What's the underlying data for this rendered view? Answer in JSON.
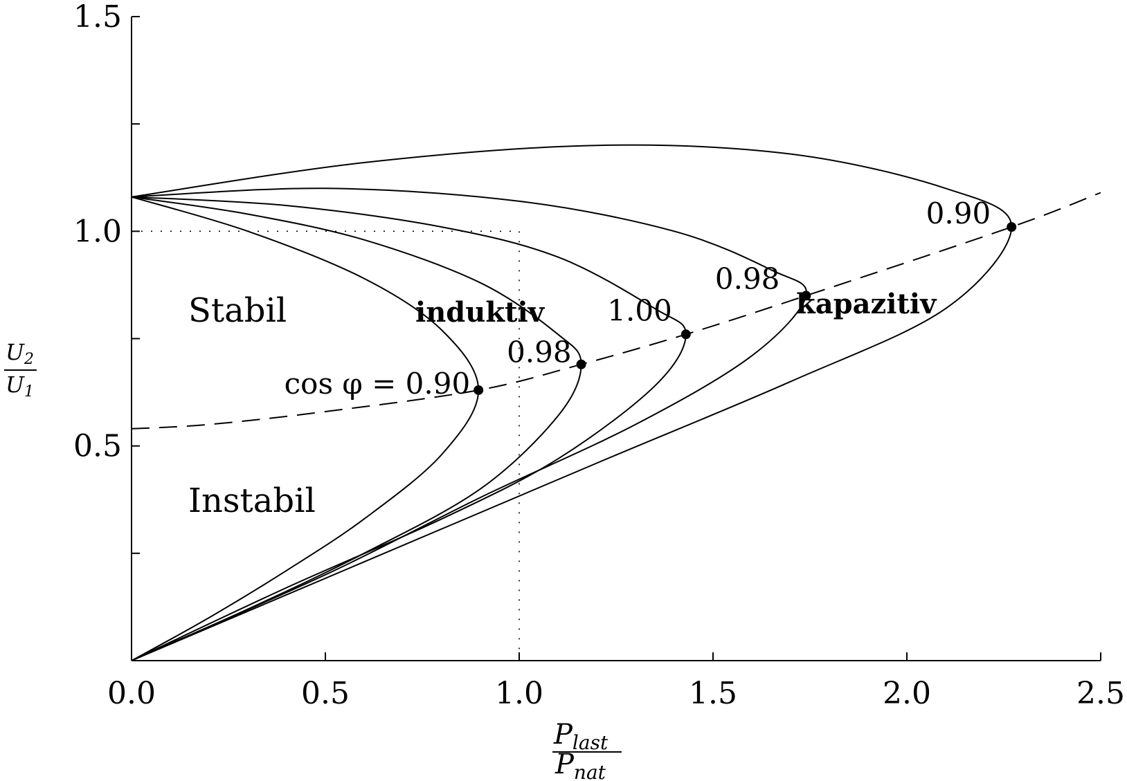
{
  "chart_data": {
    "type": "line",
    "title": "",
    "xlabel": {
      "numerator": "P",
      "numerator_sub": "last",
      "denominator": "P",
      "denominator_sub": "nat"
    },
    "ylabel": {
      "numerator": "U",
      "numerator_sub": "2",
      "denominator": "U",
      "denominator_sub": "1"
    },
    "xlim": [
      0,
      2.5
    ],
    "ylim": [
      0,
      1.5
    ],
    "x_ticks": [
      "0.0",
      "0.5",
      "1.0",
      "1.5",
      "2.0",
      "2.5"
    ],
    "x_tick_values": [
      0,
      0.5,
      1.0,
      1.5,
      2.0,
      2.5
    ],
    "y_ticks": [
      "0.5",
      "1.0",
      "1.5"
    ],
    "y_tick_values": [
      0.5,
      1.0,
      1.5
    ],
    "y_minor_tick_values": [
      0.25,
      0.75,
      1.25
    ],
    "grid": false,
    "series": [
      {
        "cos_phi": "0.90 induktiv",
        "x": [
          0,
          0.3,
          0.6,
          0.8,
          0.895,
          0.8,
          0.6,
          0.4,
          0.2,
          0
        ],
        "y": [
          1.08,
          1.0,
          0.89,
          0.77,
          0.63,
          0.48,
          0.33,
          0.21,
          0.1,
          0
        ]
      },
      {
        "cos_phi": "0.98 induktiv",
        "x": [
          0,
          0.3,
          0.6,
          0.9,
          1.1,
          1.16,
          1.1,
          0.9,
          0.6,
          0.3,
          0
        ],
        "y": [
          1.08,
          1.04,
          0.98,
          0.88,
          0.76,
          0.69,
          0.57,
          0.4,
          0.25,
          0.12,
          0
        ]
      },
      {
        "cos_phi": "1.00",
        "x": [
          0,
          0.4,
          0.8,
          1.1,
          1.35,
          1.43,
          1.35,
          1.1,
          0.8,
          0.4,
          0
        ],
        "y": [
          1.08,
          1.06,
          1.01,
          0.94,
          0.82,
          0.76,
          0.64,
          0.47,
          0.33,
          0.17,
          0
        ]
      },
      {
        "cos_phi": "0.98 kapazitiv",
        "x": [
          0,
          0.5,
          1.0,
          1.4,
          1.65,
          1.74,
          1.6,
          1.3,
          0.9,
          0.5,
          0
        ],
        "y": [
          1.08,
          1.1,
          1.07,
          1.0,
          0.91,
          0.85,
          0.71,
          0.55,
          0.38,
          0.2,
          0
        ]
      },
      {
        "cos_phi": "0.90 kapazitiv",
        "x": [
          0,
          0.6,
          1.2,
          1.7,
          2.1,
          2.27,
          2.1,
          1.7,
          1.2,
          0.6,
          0
        ],
        "y": [
          1.08,
          1.16,
          1.2,
          1.18,
          1.1,
          1.01,
          0.82,
          0.65,
          0.46,
          0.23,
          0
        ]
      }
    ],
    "critical_points": [
      {
        "label": "cos φ = 0.90",
        "x": 0.895,
        "y": 0.63
      },
      {
        "label": "0.98",
        "x": 1.16,
        "y": 0.69
      },
      {
        "label": "1.00",
        "x": 1.43,
        "y": 0.76
      },
      {
        "label": "0.98",
        "x": 1.74,
        "y": 0.85
      },
      {
        "label": "0.90",
        "x": 2.27,
        "y": 1.01
      }
    ],
    "stability_limit": {
      "x": [
        0,
        0.2,
        0.5,
        0.895,
        1.16,
        1.43,
        1.74,
        2.27,
        2.5
      ],
      "y": [
        0.54,
        0.55,
        0.58,
        0.63,
        0.69,
        0.76,
        0.85,
        1.01,
        1.09
      ]
    },
    "reference_point": {
      "x": 1.0,
      "y": 1.0
    },
    "annotations": {
      "stable": "Stabil",
      "unstable": "Instabil",
      "inductive": "induktiv",
      "capacitive": "kapazitiv"
    }
  }
}
